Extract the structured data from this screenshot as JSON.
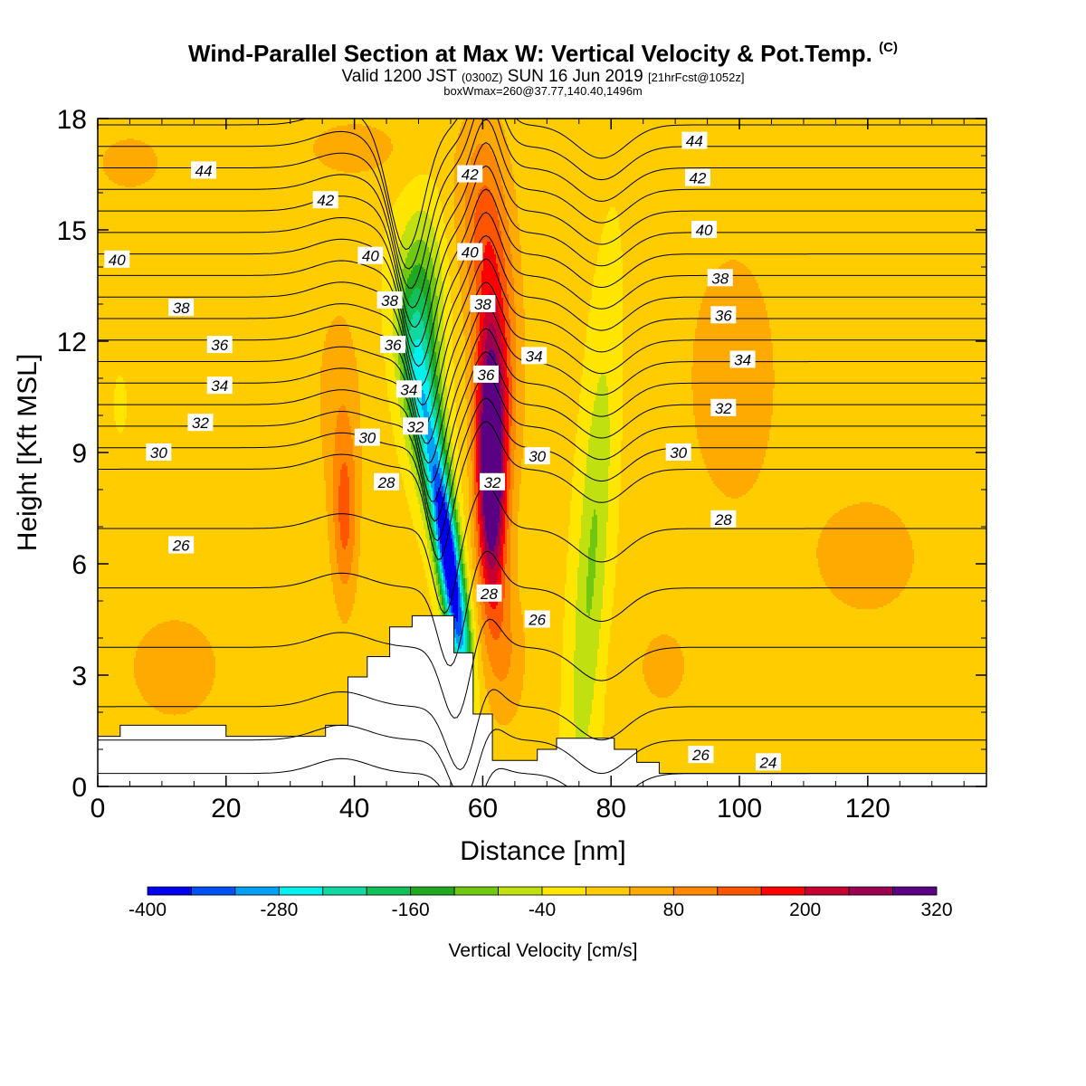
{
  "header": {
    "title": "Wind-Parallel Section at Max W: Vertical Velocity & Pot.Temp.",
    "copyright": "(C)",
    "valid_prefix": "Valid 1200 JST",
    "valid_utc": "(0300Z)",
    "valid_date": "SUN 16 Jun 2019",
    "forecast_info": "[21hrFcst@1052z]",
    "box_info": "boxWmax=260@37.77,140.40,1496m"
  },
  "chart_data": {
    "type": "heatmap",
    "subtype": "vertical cross-section (filled contours + contour lines)",
    "xlabel": "Distance [nm]",
    "ylabel": "Height [Kft MSL]",
    "xlim": [
      0,
      138.5
    ],
    "ylim": [
      0,
      18
    ],
    "x_ticks": [
      0,
      20,
      40,
      60,
      80,
      100,
      120
    ],
    "y_ticks": [
      0,
      3,
      6,
      9,
      12,
      15,
      18
    ],
    "grid": false,
    "colorbar": {
      "label": "Vertical Velocity [cm/s]",
      "orientation": "horizontal",
      "placement": "bottom",
      "levels": [
        -400,
        -360,
        -320,
        -280,
        -240,
        -200,
        -160,
        -120,
        -80,
        -40,
        0,
        40,
        80,
        120,
        160,
        200,
        240,
        280,
        320
      ],
      "tick_labels": [
        -400,
        -280,
        -160,
        -40,
        80,
        200,
        320
      ],
      "colors": [
        "#0000f0",
        "#0050f5",
        "#00a0f5",
        "#00f0f0",
        "#10d8a0",
        "#10c058",
        "#20a820",
        "#70c810",
        "#c0e010",
        "#ffe600",
        "#ffcc00",
        "#ffaa00",
        "#ff8800",
        "#ff5500",
        "#ff0000",
        "#c80032",
        "#9b0050",
        "#5a0082"
      ]
    },
    "terrain": {
      "x": [
        0,
        3.5,
        3.5,
        20,
        20,
        35.5,
        35.5,
        39,
        39,
        42,
        42,
        45.5,
        45.5,
        49,
        49,
        55.5,
        55.5,
        58.5,
        58.5,
        61.5,
        61.5,
        68.5,
        68.5,
        71.5,
        71.5,
        80.5,
        80.5,
        84,
        84,
        87.5,
        87.5,
        138.5
      ],
      "height": [
        1.35,
        1.35,
        1.65,
        1.65,
        1.35,
        1.35,
        1.65,
        1.65,
        2.95,
        2.95,
        3.5,
        3.5,
        4.3,
        4.3,
        4.6,
        4.6,
        3.6,
        3.6,
        1.95,
        1.95,
        0.7,
        0.7,
        1.0,
        1.0,
        1.3,
        1.3,
        1.0,
        1.0,
        0.65,
        0.65,
        0.35,
        0.35
      ]
    },
    "contour_field": "Potential Temperature",
    "contour_levels": [
      24,
      25,
      26,
      27,
      28,
      29,
      30,
      31,
      32,
      33,
      34,
      35,
      36,
      37,
      38,
      39,
      40,
      41,
      42,
      43,
      44,
      45,
      46
    ],
    "contour_labels": [
      {
        "text": "44",
        "x": 16.5,
        "y": 16.6
      },
      {
        "text": "42",
        "x": 35.5,
        "y": 15.8
      },
      {
        "text": "40",
        "x": 3.0,
        "y": 14.2
      },
      {
        "text": "40",
        "x": 42.5,
        "y": 14.3
      },
      {
        "text": "38",
        "x": 13.0,
        "y": 12.9
      },
      {
        "text": "38",
        "x": 45.5,
        "y": 13.1
      },
      {
        "text": "36",
        "x": 19.0,
        "y": 11.9
      },
      {
        "text": "36",
        "x": 46.0,
        "y": 11.9
      },
      {
        "text": "34",
        "x": 19.0,
        "y": 10.8
      },
      {
        "text": "34",
        "x": 48.5,
        "y": 10.7
      },
      {
        "text": "32",
        "x": 16.0,
        "y": 9.8
      },
      {
        "text": "32",
        "x": 49.5,
        "y": 9.7
      },
      {
        "text": "30",
        "x": 9.5,
        "y": 9.0
      },
      {
        "text": "30",
        "x": 42.0,
        "y": 9.4
      },
      {
        "text": "28",
        "x": 45.0,
        "y": 8.2
      },
      {
        "text": "26",
        "x": 13.0,
        "y": 6.5
      },
      {
        "text": "42",
        "x": 58.0,
        "y": 16.5
      },
      {
        "text": "40",
        "x": 58.0,
        "y": 14.4
      },
      {
        "text": "38",
        "x": 60.0,
        "y": 13.0
      },
      {
        "text": "36",
        "x": 60.5,
        "y": 11.1
      },
      {
        "text": "34",
        "x": 68.0,
        "y": 11.6
      },
      {
        "text": "32",
        "x": 61.5,
        "y": 8.2
      },
      {
        "text": "30",
        "x": 68.5,
        "y": 8.9
      },
      {
        "text": "28",
        "x": 61.0,
        "y": 5.2
      },
      {
        "text": "26",
        "x": 68.5,
        "y": 4.5
      },
      {
        "text": "44",
        "x": 93.0,
        "y": 17.4
      },
      {
        "text": "42",
        "x": 93.5,
        "y": 16.4
      },
      {
        "text": "40",
        "x": 94.5,
        "y": 15.0
      },
      {
        "text": "38",
        "x": 97.0,
        "y": 13.7
      },
      {
        "text": "36",
        "x": 97.5,
        "y": 12.7
      },
      {
        "text": "34",
        "x": 100.5,
        "y": 11.5
      },
      {
        "text": "32",
        "x": 97.5,
        "y": 10.2
      },
      {
        "text": "30",
        "x": 90.5,
        "y": 9.0
      },
      {
        "text": "28",
        "x": 97.5,
        "y": 7.2
      },
      {
        "text": "26",
        "x": 94.0,
        "y": 0.85
      },
      {
        "text": "24",
        "x": 104.5,
        "y": 0.65
      }
    ],
    "features": [
      {
        "name": "downdraft",
        "x_center": 54.5,
        "y_center": 6.2,
        "peak_w": -400
      },
      {
        "name": "updraft",
        "x_center": 61.5,
        "y_center": 8.5,
        "peak_w": 320
      },
      {
        "name": "weak downdraft band",
        "x_center": 77.0,
        "y_center": 6.0,
        "peak_w": -60
      },
      {
        "name": "updraft band",
        "x_center": 38.5,
        "y_center": 7.5,
        "peak_w": 120
      }
    ]
  }
}
